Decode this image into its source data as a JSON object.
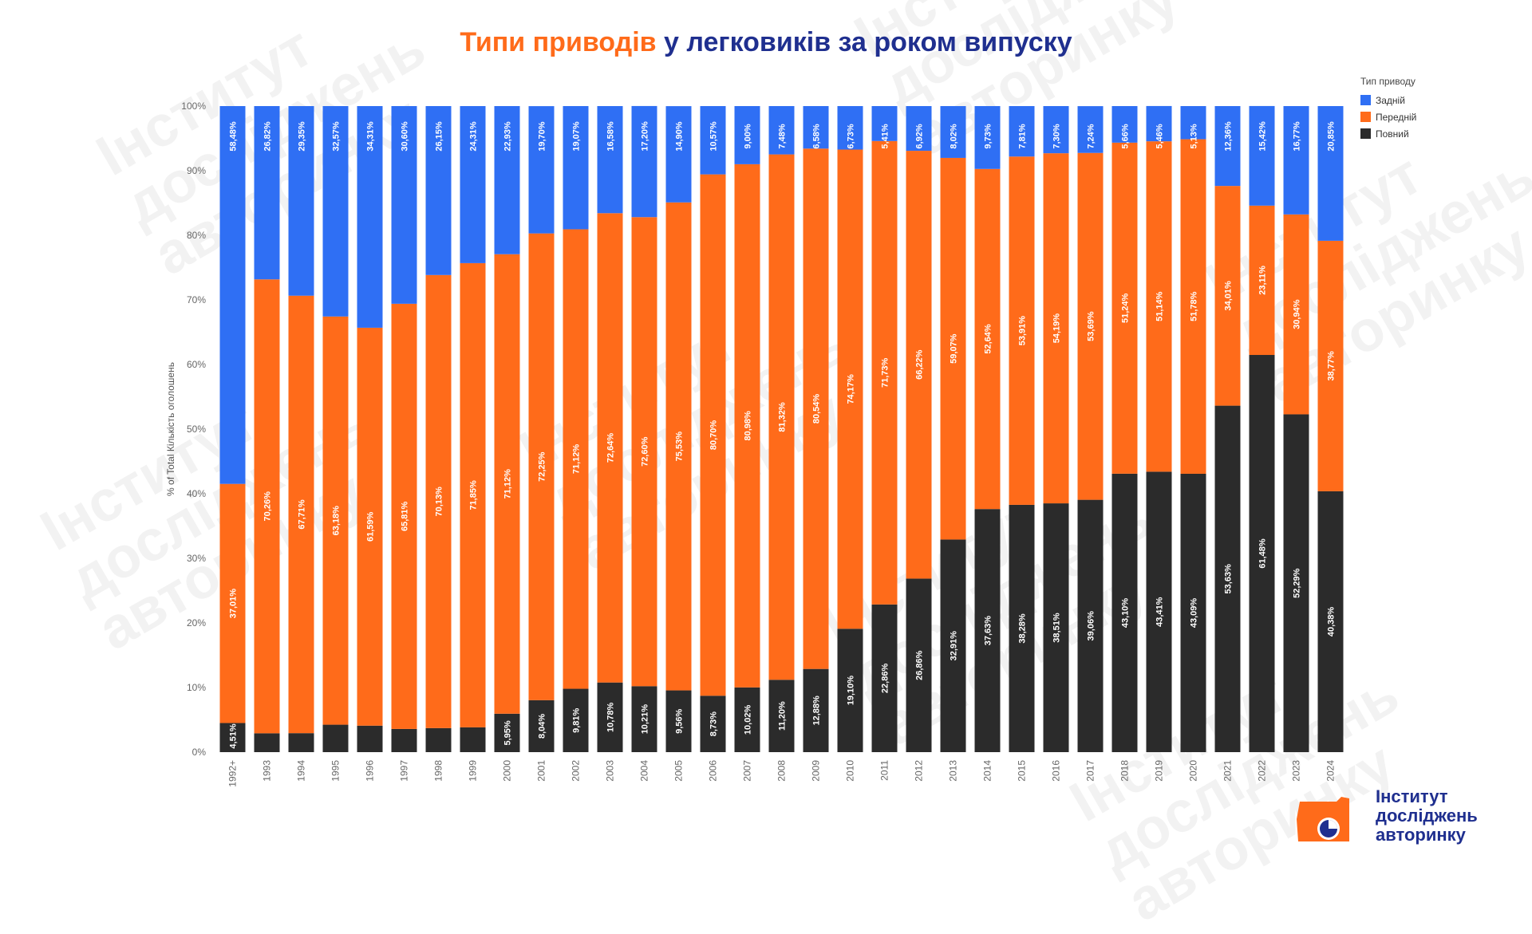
{
  "title": {
    "part1": "Типи приводів",
    "part2": " у легковиків за роком випуску"
  },
  "colors": {
    "rear": "#2f6ff4",
    "front": "#ff6b1a",
    "full": "#2b2b2b",
    "title_orange": "#ff6b1a",
    "title_navy": "#1f2f8f"
  },
  "legend": {
    "title": "Тип приводу",
    "items": [
      "Задній",
      "Передній",
      "Повний"
    ]
  },
  "logo": {
    "text": "Інститут\nдосліджень\nавторинку",
    "icon": "institute-logo-icon"
  },
  "watermark_text": "Інститут досліджень авторинку",
  "chart_data": {
    "type": "bar",
    "stacked": true,
    "ylabel": "% of Total Кількість оголошень",
    "yticks": [
      "0%",
      "10%",
      "20%",
      "30%",
      "40%",
      "50%",
      "60%",
      "70%",
      "80%",
      "90%",
      "100%"
    ],
    "ylim": [
      0,
      100
    ],
    "legend_position": "top-right",
    "grid": false,
    "categories": [
      "1992+",
      "1993",
      "1994",
      "1995",
      "1996",
      "1997",
      "1998",
      "1999",
      "2000",
      "2001",
      "2002",
      "2003",
      "2004",
      "2005",
      "2006",
      "2007",
      "2008",
      "2009",
      "2010",
      "2011",
      "2012",
      "2013",
      "2014",
      "2015",
      "2016",
      "2017",
      "2018",
      "2019",
      "2020",
      "2021",
      "2022",
      "2023",
      "2024"
    ],
    "series": [
      {
        "name": "Повний",
        "values": [
          4.51,
          2.92,
          2.94,
          4.25,
          4.1,
          3.59,
          3.72,
          3.84,
          5.95,
          8.04,
          9.81,
          10.78,
          10.21,
          9.56,
          8.73,
          10.02,
          11.2,
          12.88,
          19.1,
          22.86,
          26.86,
          32.91,
          37.63,
          38.28,
          38.51,
          39.06,
          43.1,
          43.41,
          43.09,
          53.63,
          61.48,
          52.29,
          40.38
        ],
        "labels": [
          "4,51%",
          "",
          "",
          "",
          "",
          "",
          "",
          "",
          "5,95%",
          "8,04%",
          "9,81%",
          "10,78%",
          "10,21%",
          "9,56%",
          "8,73%",
          "10,02%",
          "11,20%",
          "12,88%",
          "19,10%",
          "22,86%",
          "26,86%",
          "32,91%",
          "37,63%",
          "38,28%",
          "38,51%",
          "39,06%",
          "43,10%",
          "43,41%",
          "43,09%",
          "53,63%",
          "61,48%",
          "52,29%",
          "40,38%"
        ]
      },
      {
        "name": "Передній",
        "values": [
          37.01,
          70.26,
          67.71,
          63.18,
          61.59,
          65.81,
          70.13,
          71.85,
          71.12,
          72.25,
          71.12,
          72.64,
          72.6,
          75.53,
          80.7,
          80.98,
          81.32,
          80.54,
          74.17,
          71.73,
          66.22,
          59.07,
          52.64,
          53.91,
          54.19,
          53.69,
          51.24,
          51.14,
          51.78,
          34.01,
          23.11,
          30.94,
          38.77
        ],
        "labels": [
          "37,01%",
          "70,26%",
          "67,71%",
          "63,18%",
          "61,59%",
          "65,81%",
          "70,13%",
          "71,85%",
          "71,12%",
          "72,25%",
          "71,12%",
          "72,64%",
          "72,60%",
          "75,53%",
          "80,70%",
          "80,98%",
          "81,32%",
          "80,54%",
          "74,17%",
          "71,73%",
          "66,22%",
          "59,07%",
          "52,64%",
          "53,91%",
          "54,19%",
          "53,69%",
          "51,24%",
          "51,14%",
          "51,78%",
          "34,01%",
          "23,11%",
          "30,94%",
          "38,77%"
        ]
      },
      {
        "name": "Задній",
        "values": [
          58.48,
          26.82,
          29.35,
          32.57,
          34.31,
          30.6,
          26.15,
          24.31,
          22.93,
          19.7,
          19.07,
          16.58,
          17.2,
          14.9,
          10.57,
          9.0,
          7.48,
          6.58,
          6.73,
          5.41,
          6.92,
          8.02,
          9.73,
          7.81,
          7.3,
          7.24,
          5.66,
          5.46,
          5.13,
          12.36,
          15.42,
          16.77,
          20.85
        ],
        "labels": [
          "58,48%",
          "26,82%",
          "29,35%",
          "32,57%",
          "34,31%",
          "30,60%",
          "26,15%",
          "24,31%",
          "22,93%",
          "19,70%",
          "19,07%",
          "16,58%",
          "17,20%",
          "14,90%",
          "10,57%",
          "9,00%",
          "7,48%",
          "6,58%",
          "6,73%",
          "5,41%",
          "6,92%",
          "8,02%",
          "9,73%",
          "7,81%",
          "7,30%",
          "7,24%",
          "5,66%",
          "5,46%",
          "5,13%",
          "12,36%",
          "15,42%",
          "16,77%",
          "20,85%"
        ]
      }
    ]
  }
}
